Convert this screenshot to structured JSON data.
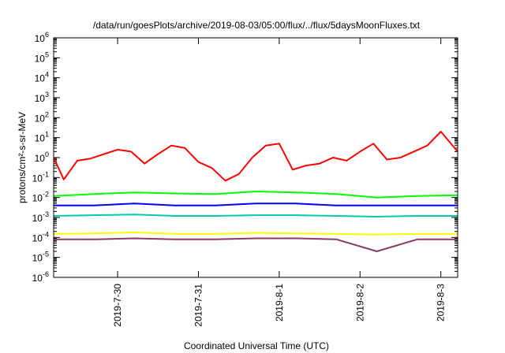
{
  "chart_data": {
    "type": "line",
    "title": "/data/run/goesPlots/archive/2019-08-03/05:00/flux/../flux/5daysMoonFluxes.txt",
    "xlabel": "Coordinated Universal Time (UTC)",
    "ylabel": "protons/cm²-s-sr-MeV",
    "y_scale": "log",
    "ylim": [
      1e-06,
      1000000.0
    ],
    "y_ticks": [
      {
        "value": 1e-06,
        "mantissa": "10",
        "exp": "-6"
      },
      {
        "value": 1e-05,
        "mantissa": "10",
        "exp": "-5"
      },
      {
        "value": 0.0001,
        "mantissa": "10",
        "exp": "-4"
      },
      {
        "value": 0.001,
        "mantissa": "10",
        "exp": "-3"
      },
      {
        "value": 0.01,
        "mantissa": "10",
        "exp": "-2"
      },
      {
        "value": 0.1,
        "mantissa": "10",
        "exp": "-1"
      },
      {
        "value": 1.0,
        "mantissa": "10",
        "exp": "0"
      },
      {
        "value": 10.0,
        "mantissa": "10",
        "exp": "1"
      },
      {
        "value": 100.0,
        "mantissa": "10",
        "exp": "2"
      },
      {
        "value": 1000.0,
        "mantissa": "10",
        "exp": "3"
      },
      {
        "value": 10000.0,
        "mantissa": "10",
        "exp": "4"
      },
      {
        "value": 100000.0,
        "mantissa": "10",
        "exp": "5"
      },
      {
        "value": 1000000.0,
        "mantissa": "10",
        "exp": "6"
      }
    ],
    "xlim": [
      "2019-07-29T05:00",
      "2019-08-03T05:00"
    ],
    "x_ticks": [
      {
        "time": "2019-07-30T00:00",
        "label": "2019-7-30"
      },
      {
        "time": "2019-07-31T00:00",
        "label": "2019-7-31"
      },
      {
        "time": "2019-08-01T00:00",
        "label": "2019-8-1"
      },
      {
        "time": "2019-08-02T00:00",
        "label": "2019-8-2"
      },
      {
        "time": "2019-08-03T00:00",
        "label": "2019-8-3"
      }
    ],
    "grid": false,
    "legend": "none",
    "series": [
      {
        "color": "#ff0000",
        "x": [
          "2019-07-29T05:00",
          "2019-07-29T08:00",
          "2019-07-29T12:00",
          "2019-07-29T16:00",
          "2019-07-29T20:00",
          "2019-07-30T00:00",
          "2019-07-30T04:00",
          "2019-07-30T08:00",
          "2019-07-30T12:00",
          "2019-07-30T16:00",
          "2019-07-30T20:00",
          "2019-07-31T00:00",
          "2019-07-31T04:00",
          "2019-07-31T08:00",
          "2019-07-31T12:00",
          "2019-07-31T16:00",
          "2019-07-31T20:00",
          "2019-08-01T00:00",
          "2019-08-01T04:00",
          "2019-08-01T08:00",
          "2019-08-01T12:00",
          "2019-08-01T16:00",
          "2019-08-01T20:00",
          "2019-08-02T00:00",
          "2019-08-02T04:00",
          "2019-08-02T08:00",
          "2019-08-02T12:00",
          "2019-08-02T16:00",
          "2019-08-02T20:00",
          "2019-08-03T00:00",
          "2019-08-03T05:00"
        ],
        "values": [
          1.0,
          0.08,
          0.7,
          0.9,
          1.5,
          2.5,
          2.0,
          0.5,
          1.5,
          4.0,
          3.0,
          0.6,
          0.3,
          0.07,
          0.15,
          1.0,
          4.0,
          5.0,
          0.25,
          0.4,
          0.5,
          1.0,
          0.7,
          2.0,
          5.0,
          0.8,
          1.0,
          2.0,
          4.0,
          20.0,
          2.0
        ]
      },
      {
        "color": "#00ff00",
        "x": [
          "2019-07-29T05:00",
          "2019-07-29T17:00",
          "2019-07-30T05:00",
          "2019-07-30T17:00",
          "2019-07-31T05:00",
          "2019-07-31T17:00",
          "2019-08-01T05:00",
          "2019-08-01T17:00",
          "2019-08-02T05:00",
          "2019-08-02T17:00",
          "2019-08-03T05:00"
        ],
        "values": [
          0.012,
          0.015,
          0.018,
          0.016,
          0.015,
          0.02,
          0.018,
          0.015,
          0.01,
          0.012,
          0.013
        ]
      },
      {
        "color": "#0000ff",
        "x": [
          "2019-07-29T05:00",
          "2019-07-29T17:00",
          "2019-07-30T05:00",
          "2019-07-30T17:00",
          "2019-07-31T05:00",
          "2019-07-31T17:00",
          "2019-08-01T05:00",
          "2019-08-01T17:00",
          "2019-08-02T05:00",
          "2019-08-02T17:00",
          "2019-08-03T05:00"
        ],
        "values": [
          0.004,
          0.004,
          0.005,
          0.004,
          0.004,
          0.005,
          0.005,
          0.004,
          0.004,
          0.004,
          0.004
        ]
      },
      {
        "color": "#00ccaa",
        "x": [
          "2019-07-29T05:00",
          "2019-07-29T17:00",
          "2019-07-30T05:00",
          "2019-07-30T17:00",
          "2019-07-31T05:00",
          "2019-07-31T17:00",
          "2019-08-01T05:00",
          "2019-08-01T17:00",
          "2019-08-02T05:00",
          "2019-08-02T17:00",
          "2019-08-03T05:00"
        ],
        "values": [
          0.0012,
          0.0013,
          0.0014,
          0.0012,
          0.0012,
          0.0013,
          0.0013,
          0.0012,
          0.0011,
          0.0012,
          0.0012
        ]
      },
      {
        "color": "#ffff00",
        "x": [
          "2019-07-29T05:00",
          "2019-07-29T17:00",
          "2019-07-30T05:00",
          "2019-07-30T17:00",
          "2019-07-31T05:00",
          "2019-07-31T17:00",
          "2019-08-01T05:00",
          "2019-08-01T17:00",
          "2019-08-02T05:00",
          "2019-08-02T17:00",
          "2019-08-03T05:00"
        ],
        "values": [
          0.00015,
          0.00016,
          0.00018,
          0.00015,
          0.00015,
          0.00017,
          0.00016,
          0.00015,
          0.00014,
          0.00015,
          0.00015
        ]
      },
      {
        "color": "#8b3a62",
        "x": [
          "2019-07-29T05:00",
          "2019-07-29T17:00",
          "2019-07-30T05:00",
          "2019-07-30T17:00",
          "2019-07-31T05:00",
          "2019-07-31T17:00",
          "2019-08-01T05:00",
          "2019-08-01T17:00",
          "2019-08-02T05:00",
          "2019-08-02T17:00",
          "2019-08-03T05:00"
        ],
        "values": [
          8e-05,
          8e-05,
          9e-05,
          8e-05,
          8e-05,
          9e-05,
          9e-05,
          8e-05,
          2e-05,
          8e-05,
          8e-05
        ]
      }
    ]
  }
}
